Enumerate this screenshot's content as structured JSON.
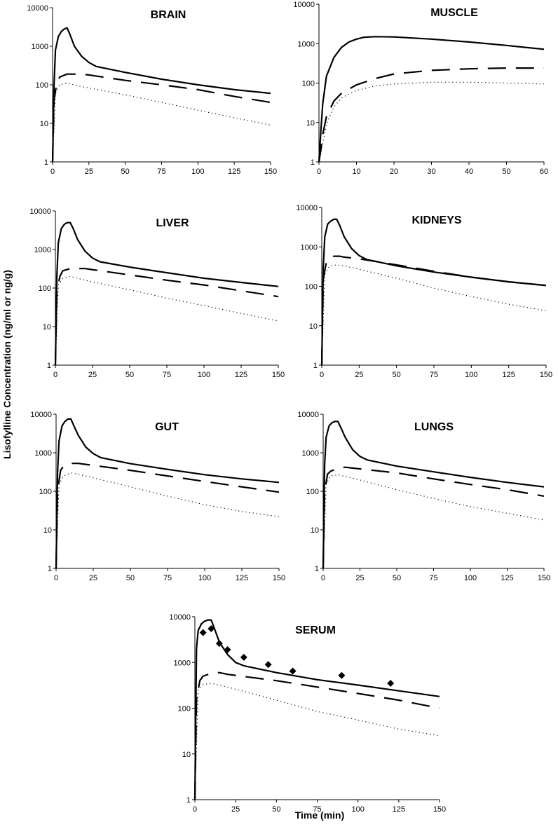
{
  "figure": {
    "ylabel": "Lisofylline Concentration (ng/ml or ng/g)",
    "xlabel": "Time (min)"
  },
  "chart_data": [
    {
      "type": "line",
      "title": "BRAIN",
      "yscale": "log",
      "xlim": [
        0,
        150
      ],
      "ylim": [
        1,
        10000
      ],
      "xticks": [
        0,
        25,
        50,
        75,
        100,
        125,
        150
      ],
      "yticks": [
        1,
        10,
        100,
        1000,
        10000
      ],
      "series": [
        {
          "style": "solid",
          "x": [
            0,
            1,
            2,
            4,
            6,
            8,
            10,
            12,
            15,
            20,
            25,
            30,
            50,
            75,
            100,
            125,
            150
          ],
          "y": [
            1,
            100,
            800,
            1800,
            2400,
            2800,
            3000,
            2000,
            1000,
            550,
            380,
            300,
            210,
            140,
            100,
            75,
            60
          ]
        },
        {
          "style": "dashed",
          "x": [
            0,
            1,
            3,
            5,
            10,
            20,
            25,
            50,
            75,
            100,
            125,
            150
          ],
          "y": [
            1,
            40,
            120,
            160,
            190,
            190,
            180,
            130,
            100,
            75,
            50,
            35
          ]
        },
        {
          "style": "dotted",
          "x": [
            0,
            2,
            5,
            10,
            20,
            50,
            75,
            100,
            125,
            150
          ],
          "y": [
            1,
            60,
            100,
            110,
            90,
            55,
            35,
            22,
            14,
            9
          ]
        }
      ]
    },
    {
      "type": "line",
      "title": "MUSCLE",
      "yscale": "log",
      "xlim": [
        0,
        60
      ],
      "ylim": [
        1,
        10000
      ],
      "xticks": [
        0,
        10,
        20,
        30,
        40,
        50,
        60
      ],
      "yticks": [
        1,
        10,
        100,
        1000,
        10000
      ],
      "series": [
        {
          "style": "solid",
          "x": [
            0,
            0.5,
            1,
            2,
            4,
            6,
            8,
            10,
            12,
            15,
            20,
            30,
            40,
            50,
            60
          ],
          "y": [
            1,
            6,
            30,
            150,
            450,
            800,
            1100,
            1300,
            1450,
            1500,
            1480,
            1300,
            1100,
            900,
            720
          ]
        },
        {
          "style": "dashed",
          "x": [
            0,
            0.5,
            1,
            2,
            4,
            6,
            10,
            15,
            20,
            30,
            40,
            50,
            60
          ],
          "y": [
            1,
            2,
            5,
            14,
            35,
            55,
            90,
            130,
            170,
            210,
            230,
            240,
            240
          ]
        },
        {
          "style": "dotted",
          "x": [
            0,
            1,
            2,
            4,
            6,
            10,
            15,
            20,
            30,
            40,
            50,
            60
          ],
          "y": [
            1,
            3,
            9,
            25,
            42,
            65,
            85,
            95,
            105,
            105,
            100,
            95
          ]
        }
      ]
    },
    {
      "type": "line",
      "title": "LIVER",
      "yscale": "log",
      "xlim": [
        0,
        150
      ],
      "ylim": [
        1,
        10000
      ],
      "xticks": [
        0,
        25,
        50,
        75,
        100,
        125,
        150
      ],
      "yticks": [
        1,
        10,
        100,
        1000,
        10000
      ],
      "series": [
        {
          "style": "solid",
          "x": [
            0,
            1,
            2,
            4,
            6,
            8,
            10,
            12,
            15,
            20,
            25,
            30,
            50,
            75,
            100,
            125,
            150
          ],
          "y": [
            1,
            200,
            1500,
            3500,
            4500,
            5000,
            5000,
            3500,
            1800,
            900,
            600,
            480,
            350,
            250,
            180,
            140,
            110
          ]
        },
        {
          "style": "dashed",
          "x": [
            0,
            1,
            3,
            5,
            10,
            20,
            25,
            50,
            75,
            100,
            125,
            150
          ],
          "y": [
            1,
            80,
            200,
            280,
            320,
            320,
            300,
            220,
            160,
            120,
            85,
            60
          ]
        },
        {
          "style": "dotted",
          "x": [
            0,
            2,
            5,
            10,
            20,
            50,
            75,
            100,
            125,
            150
          ],
          "y": [
            1,
            120,
            180,
            200,
            160,
            90,
            55,
            35,
            22,
            14
          ]
        }
      ]
    },
    {
      "type": "line",
      "title": "KIDNEYS",
      "yscale": "log",
      "xlim": [
        0,
        150
      ],
      "ylim": [
        1,
        10000
      ],
      "xticks": [
        0,
        25,
        50,
        75,
        100,
        125,
        150
      ],
      "yticks": [
        1,
        10,
        100,
        1000,
        10000
      ],
      "series": [
        {
          "style": "solid",
          "x": [
            0,
            1,
            2,
            4,
            6,
            8,
            10,
            12,
            15,
            20,
            25,
            30,
            50,
            75,
            100,
            125,
            150
          ],
          "y": [
            1,
            300,
            1800,
            3800,
            4500,
            5000,
            5000,
            3500,
            1800,
            900,
            600,
            480,
            330,
            230,
            170,
            130,
            105
          ]
        },
        {
          "style": "dashed",
          "x": [
            0,
            1,
            3,
            5,
            8,
            12,
            15,
            25,
            50,
            75,
            100,
            125,
            150
          ],
          "y": [
            1,
            150,
            400,
            500,
            580,
            580,
            550,
            500,
            350,
            240,
            170,
            130,
            105
          ]
        },
        {
          "style": "dotted",
          "x": [
            0,
            2,
            5,
            10,
            20,
            50,
            75,
            100,
            125,
            150
          ],
          "y": [
            1,
            200,
            320,
            350,
            300,
            160,
            90,
            55,
            35,
            24
          ]
        }
      ]
    },
    {
      "type": "line",
      "title": "GUT",
      "yscale": "log",
      "xlim": [
        0,
        150
      ],
      "ylim": [
        1,
        10000
      ],
      "xticks": [
        0,
        25,
        50,
        75,
        100,
        125,
        150
      ],
      "yticks": [
        1,
        10,
        100,
        1000,
        10000
      ],
      "series": [
        {
          "style": "solid",
          "x": [
            0,
            1,
            2,
            4,
            6,
            8,
            10,
            12,
            15,
            20,
            25,
            30,
            50,
            75,
            100,
            125,
            150
          ],
          "y": [
            1,
            300,
            2000,
            5000,
            6500,
            7500,
            7500,
            5000,
            2800,
            1400,
            950,
            750,
            520,
            370,
            270,
            210,
            170
          ]
        },
        {
          "style": "dashed",
          "x": [
            0,
            1,
            3,
            5,
            10,
            15,
            20,
            50,
            75,
            100,
            125,
            150
          ],
          "y": [
            1,
            100,
            350,
            450,
            530,
            530,
            500,
            350,
            250,
            180,
            130,
            95
          ]
        },
        {
          "style": "dotted",
          "x": [
            0,
            2,
            5,
            10,
            20,
            50,
            75,
            100,
            125,
            150
          ],
          "y": [
            1,
            150,
            250,
            300,
            250,
            130,
            75,
            45,
            30,
            22
          ]
        }
      ]
    },
    {
      "type": "line",
      "title": "LUNGS",
      "yscale": "log",
      "xlim": [
        0,
        150
      ],
      "ylim": [
        1,
        10000
      ],
      "xticks": [
        0,
        25,
        50,
        75,
        100,
        125,
        150
      ],
      "yticks": [
        1,
        10,
        100,
        1000,
        10000
      ],
      "series": [
        {
          "style": "solid",
          "x": [
            0,
            1,
            2,
            4,
            6,
            8,
            10,
            12,
            15,
            20,
            25,
            30,
            50,
            75,
            100,
            125,
            150
          ],
          "y": [
            1,
            500,
            2500,
            5000,
            6000,
            6500,
            6500,
            4500,
            2500,
            1200,
            800,
            650,
            450,
            320,
            230,
            170,
            130
          ]
        },
        {
          "style": "dashed",
          "x": [
            0,
            1,
            3,
            5,
            10,
            15,
            20,
            50,
            75,
            100,
            125,
            150
          ],
          "y": [
            1,
            100,
            280,
            330,
            400,
            420,
            400,
            300,
            210,
            150,
            110,
            75
          ]
        },
        {
          "style": "dotted",
          "x": [
            0,
            2,
            5,
            10,
            20,
            50,
            75,
            100,
            125,
            150
          ],
          "y": [
            1,
            150,
            250,
            270,
            220,
            110,
            65,
            40,
            27,
            18
          ]
        }
      ]
    },
    {
      "type": "line",
      "title": "SERUM",
      "yscale": "log",
      "xlim": [
        0,
        150
      ],
      "ylim": [
        1,
        10000
      ],
      "xticks": [
        0,
        25,
        50,
        75,
        100,
        125,
        150
      ],
      "yticks": [
        1,
        10,
        100,
        1000,
        10000
      ],
      "series": [
        {
          "style": "solid",
          "x": [
            0,
            1,
            2,
            4,
            6,
            8,
            10,
            12,
            15,
            20,
            25,
            30,
            50,
            75,
            100,
            125,
            150
          ],
          "y": [
            1,
            2000,
            5000,
            7000,
            8000,
            8500,
            8500,
            5500,
            2800,
            1500,
            1000,
            850,
            600,
            420,
            320,
            240,
            180
          ]
        },
        {
          "style": "dashed",
          "x": [
            0,
            1,
            3,
            5,
            10,
            15,
            20,
            50,
            75,
            100,
            125,
            150
          ],
          "y": [
            1,
            150,
            400,
            500,
            580,
            600,
            550,
            400,
            290,
            210,
            150,
            100
          ]
        },
        {
          "style": "dotted",
          "x": [
            0,
            2,
            5,
            10,
            20,
            50,
            75,
            100,
            125,
            150
          ],
          "y": [
            1,
            250,
            330,
            350,
            290,
            150,
            85,
            55,
            35,
            25
          ]
        },
        {
          "style": "markers",
          "marker": "diamond",
          "x": [
            5,
            10,
            15,
            20,
            30,
            45,
            60,
            90,
            120
          ],
          "y": [
            4500,
            5500,
            2600,
            1900,
            1300,
            900,
            650,
            520,
            350
          ]
        }
      ]
    }
  ]
}
